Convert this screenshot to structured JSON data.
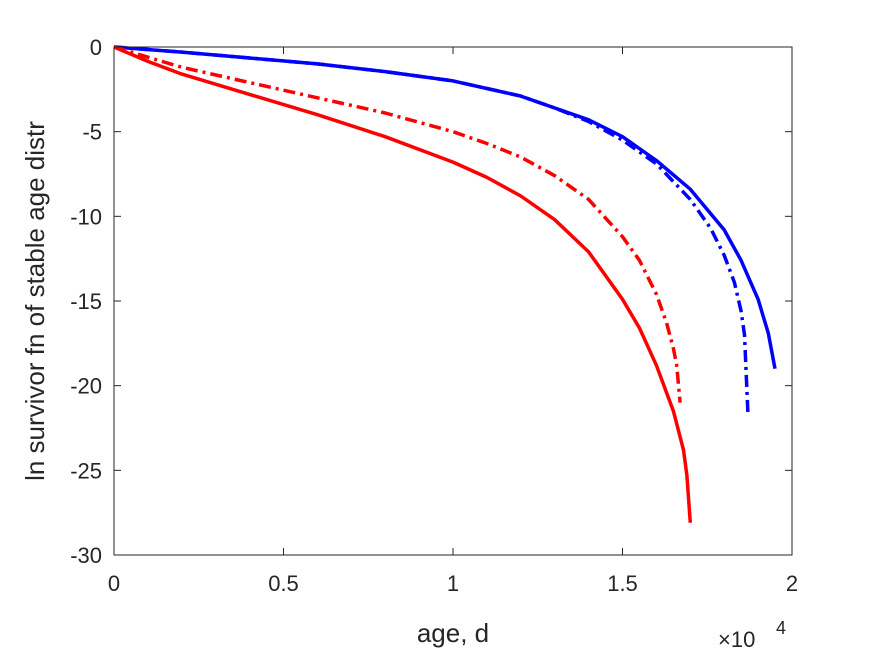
{
  "chart_data": {
    "type": "line",
    "xlabel": "age, d",
    "ylabel": "ln survivor fn of stable age distr",
    "x_multiplier_label": "×10",
    "x_multiplier_exponent": "4",
    "xlim": [
      0,
      20000
    ],
    "ylim": [
      -30,
      0
    ],
    "x_ticks": [
      0,
      5000,
      10000,
      15000,
      20000
    ],
    "x_tick_labels": [
      "0",
      "0.5",
      "1",
      "1.5",
      "2"
    ],
    "y_ticks": [
      0,
      -5,
      -10,
      -15,
      -20,
      -25,
      -30
    ],
    "y_tick_labels": [
      "0",
      "-5",
      "-10",
      "-15",
      "-20",
      "-25",
      "-30"
    ],
    "grid": false,
    "series": [
      {
        "color": "#0000ff",
        "style": "solid",
        "x": [
          0,
          2000,
          4000,
          6000,
          8000,
          10000,
          12000,
          14000,
          15000,
          16000,
          17000,
          18000,
          18500,
          19000,
          19300,
          19500
        ],
        "y": [
          0,
          -0.3,
          -0.65,
          -1.0,
          -1.45,
          -2.0,
          -2.9,
          -4.3,
          -5.3,
          -6.7,
          -8.4,
          -10.8,
          -12.6,
          -14.9,
          -16.9,
          -19.0
        ]
      },
      {
        "color": "#0000ff",
        "style": "dashdot",
        "x": [
          0,
          2000,
          4000,
          6000,
          8000,
          10000,
          12000,
          13000,
          14000,
          15000,
          16000,
          17000,
          17600,
          18000,
          18300,
          18500,
          18600,
          18700
        ],
        "y": [
          0,
          -0.3,
          -0.65,
          -1.0,
          -1.45,
          -2.0,
          -2.9,
          -3.6,
          -4.4,
          -5.5,
          -6.9,
          -9.0,
          -10.7,
          -12.3,
          -13.9,
          -15.6,
          -17.0,
          -21.6
        ]
      },
      {
        "color": "#ff0000",
        "style": "dashdot",
        "x": [
          0,
          1000,
          2000,
          4000,
          6000,
          8000,
          10000,
          11000,
          12000,
          13000,
          14000,
          15000,
          15500,
          16000,
          16300,
          16500,
          16600,
          16700
        ],
        "y": [
          0,
          -0.6,
          -1.2,
          -2.1,
          -3.0,
          -3.9,
          -5.0,
          -5.7,
          -6.5,
          -7.6,
          -9.0,
          -11.2,
          -12.6,
          -14.6,
          -16.3,
          -17.8,
          -18.8,
          -21.0
        ]
      },
      {
        "color": "#ff0000",
        "style": "solid",
        "x": [
          0,
          1000,
          2000,
          4000,
          6000,
          8000,
          10000,
          11000,
          12000,
          13000,
          14000,
          15000,
          15500,
          16000,
          16500,
          16800,
          16900,
          17000
        ],
        "y": [
          0,
          -0.85,
          -1.6,
          -2.8,
          -4.0,
          -5.3,
          -6.8,
          -7.7,
          -8.8,
          -10.2,
          -12.1,
          -14.9,
          -16.6,
          -18.8,
          -21.5,
          -23.8,
          -25.3,
          -28.1
        ]
      }
    ]
  }
}
